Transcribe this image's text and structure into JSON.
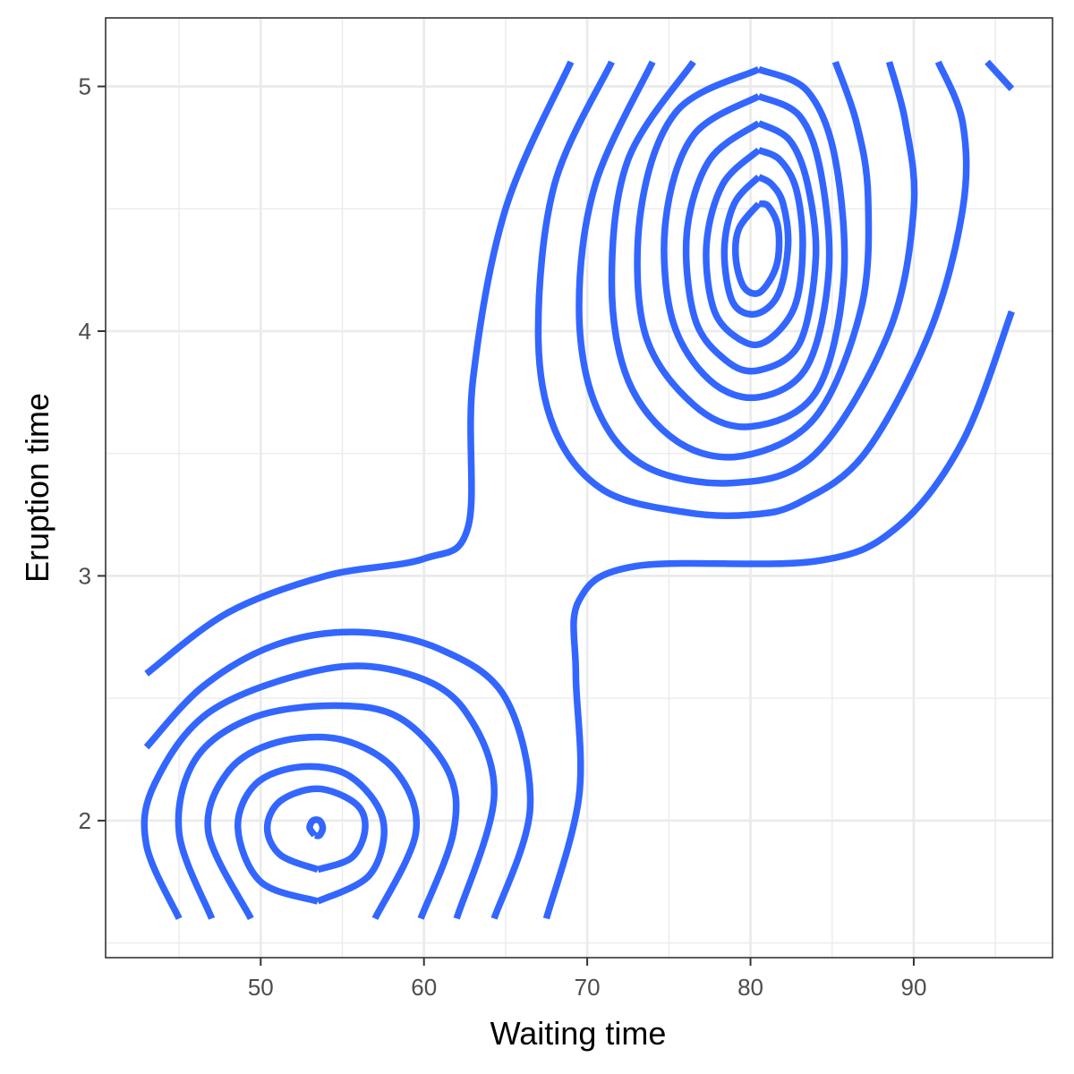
{
  "chart_data": {
    "type": "contour",
    "title": "",
    "xlabel": "Waiting time",
    "ylabel": "Eruption time",
    "xlim": [
      40.5,
      98.5
    ],
    "ylim": [
      1.44,
      5.28
    ],
    "x_ticks": [
      50,
      60,
      70,
      80,
      90
    ],
    "y_ticks": [
      2,
      3,
      4,
      5
    ],
    "x_tick_labels": [
      "50",
      "60",
      "70",
      "80",
      "90"
    ],
    "y_tick_labels": [
      "2",
      "3",
      "4",
      "5"
    ],
    "grid": true,
    "line_color": "#3366ff",
    "density_peaks": [
      {
        "x": 80.5,
        "y": 4.38
      },
      {
        "x": 53.5,
        "y": 1.98
      }
    ],
    "contours": [
      {
        "name": "contour-outer-upper",
        "points": [
          [
            69,
            5.1
          ],
          [
            65,
            4.5
          ],
          [
            63,
            3.8
          ],
          [
            62.7,
            3.2
          ],
          [
            60,
            3.07
          ],
          [
            54,
            3.0
          ],
          [
            48,
            2.85
          ],
          [
            43,
            2.6
          ]
        ]
      },
      {
        "name": "contour-outer-lower",
        "points": [
          [
            67.5,
            1.6
          ],
          [
            69.5,
            2.1
          ],
          [
            69.3,
            2.6
          ],
          [
            69.5,
            2.9
          ],
          [
            73,
            3.04
          ],
          [
            84,
            3.06
          ],
          [
            89,
            3.2
          ],
          [
            93,
            3.55
          ],
          [
            96,
            4.08
          ]
        ]
      },
      {
        "name": "contour-upper-arc-1",
        "points": [
          [
            71.5,
            5.1
          ],
          [
            68,
            4.6
          ],
          [
            67,
            4.0
          ],
          [
            68,
            3.6
          ],
          [
            71,
            3.35
          ],
          [
            76,
            3.26
          ],
          [
            80,
            3.25
          ],
          [
            83,
            3.3
          ],
          [
            87,
            3.5
          ],
          [
            91,
            4.0
          ],
          [
            93,
            4.5
          ],
          [
            93,
            4.85
          ],
          [
            91.5,
            5.1
          ]
        ]
      },
      {
        "name": "contour-upper-arc-2",
        "points": [
          [
            74,
            5.1
          ],
          [
            70.5,
            4.6
          ],
          [
            69.5,
            4.1
          ],
          [
            70.5,
            3.7
          ],
          [
            73.5,
            3.45
          ],
          [
            79,
            3.38
          ],
          [
            84,
            3.5
          ],
          [
            88.5,
            4.0
          ],
          [
            90,
            4.5
          ],
          [
            89.5,
            4.85
          ],
          [
            88.5,
            5.1
          ]
        ]
      },
      {
        "name": "contour-upper-arc-3",
        "points": [
          [
            76.5,
            5.1
          ],
          [
            72.5,
            4.7
          ],
          [
            71.5,
            4.2
          ],
          [
            72.5,
            3.8
          ],
          [
            75.5,
            3.55
          ],
          [
            79.5,
            3.49
          ],
          [
            84,
            3.65
          ],
          [
            86.8,
            4.1
          ],
          [
            87.2,
            4.55
          ],
          [
            86.5,
            4.85
          ],
          [
            85.2,
            5.1
          ]
        ]
      },
      {
        "name": "contour-upper-ring-1",
        "points": [
          [
            80.5,
            5.07
          ],
          [
            75.5,
            4.9
          ],
          [
            73.3,
            4.5
          ],
          [
            73.5,
            4.0
          ],
          [
            76.5,
            3.7
          ],
          [
            80,
            3.61
          ],
          [
            84,
            3.75
          ],
          [
            85.7,
            4.2
          ],
          [
            85.2,
            4.7
          ],
          [
            83.5,
            4.98
          ],
          [
            80.5,
            5.07
          ]
        ]
      },
      {
        "name": "contour-upper-ring-2",
        "points": [
          [
            80.5,
            4.96
          ],
          [
            76.5,
            4.8
          ],
          [
            74.8,
            4.45
          ],
          [
            75.2,
            4.05
          ],
          [
            77.5,
            3.8
          ],
          [
            80.5,
            3.73
          ],
          [
            83.5,
            3.86
          ],
          [
            84.8,
            4.25
          ],
          [
            84.3,
            4.65
          ],
          [
            83,
            4.88
          ],
          [
            80.5,
            4.96
          ]
        ]
      },
      {
        "name": "contour-upper-ring-3",
        "points": [
          [
            80.5,
            4.85
          ],
          [
            77.5,
            4.7
          ],
          [
            76.1,
            4.4
          ],
          [
            76.6,
            4.05
          ],
          [
            78.5,
            3.88
          ],
          [
            80.5,
            3.84
          ],
          [
            83,
            3.95
          ],
          [
            84,
            4.3
          ],
          [
            83.5,
            4.6
          ],
          [
            82.4,
            4.78
          ],
          [
            80.5,
            4.85
          ]
        ]
      },
      {
        "name": "contour-upper-ring-4",
        "points": [
          [
            80.5,
            4.74
          ],
          [
            78.3,
            4.6
          ],
          [
            77.3,
            4.35
          ],
          [
            77.8,
            4.08
          ],
          [
            79.5,
            3.96
          ],
          [
            81,
            3.96
          ],
          [
            82.7,
            4.1
          ],
          [
            83.2,
            4.35
          ],
          [
            82.8,
            4.58
          ],
          [
            81.8,
            4.7
          ],
          [
            80.5,
            4.74
          ]
        ]
      },
      {
        "name": "contour-upper-ring-5",
        "points": [
          [
            80.5,
            4.63
          ],
          [
            79,
            4.52
          ],
          [
            78.4,
            4.33
          ],
          [
            78.9,
            4.12
          ],
          [
            80.3,
            4.07
          ],
          [
            81.7,
            4.15
          ],
          [
            82.3,
            4.35
          ],
          [
            82,
            4.52
          ],
          [
            81.3,
            4.6
          ],
          [
            80.5,
            4.63
          ]
        ]
      },
      {
        "name": "contour-upper-ring-6",
        "points": [
          [
            80.5,
            4.52
          ],
          [
            79.3,
            4.42
          ],
          [
            79.1,
            4.3
          ],
          [
            79.6,
            4.18
          ],
          [
            80.6,
            4.16
          ],
          [
            81.6,
            4.27
          ],
          [
            81.7,
            4.42
          ],
          [
            81.1,
            4.51
          ],
          [
            80.5,
            4.52
          ]
        ]
      },
      {
        "name": "contour-upper-right-1",
        "points": [
          [
            94.5,
            5.1
          ],
          [
            96,
            4.99
          ]
        ]
      },
      {
        "name": "contour-lower-arc-1",
        "points": [
          [
            64.3,
            1.6
          ],
          [
            66.5,
            2.05
          ],
          [
            65,
            2.5
          ],
          [
            61,
            2.7
          ],
          [
            56,
            2.77
          ],
          [
            51,
            2.72
          ],
          [
            46.5,
            2.55
          ],
          [
            43,
            2.3
          ]
        ]
      },
      {
        "name": "contour-lower-arc-2",
        "points": [
          [
            45,
            1.6
          ],
          [
            43,
            1.9
          ],
          [
            43.5,
            2.15
          ],
          [
            47,
            2.45
          ],
          [
            54,
            2.62
          ],
          [
            59,
            2.6
          ],
          [
            62.5,
            2.45
          ],
          [
            64.3,
            2.1
          ],
          [
            62,
            1.6
          ]
        ]
      },
      {
        "name": "contour-lower-arc-3",
        "points": [
          [
            47,
            1.6
          ],
          [
            45,
            1.95
          ],
          [
            46,
            2.25
          ],
          [
            49.5,
            2.42
          ],
          [
            54.5,
            2.47
          ],
          [
            58.5,
            2.42
          ],
          [
            61.5,
            2.2
          ],
          [
            61.8,
            1.95
          ],
          [
            59.8,
            1.6
          ]
        ]
      },
      {
        "name": "contour-lower-arc-4",
        "points": [
          [
            49.4,
            1.6
          ],
          [
            46.8,
            1.95
          ],
          [
            48,
            2.2
          ],
          [
            51,
            2.32
          ],
          [
            55,
            2.33
          ],
          [
            58.3,
            2.2
          ],
          [
            59.5,
            1.95
          ],
          [
            57,
            1.6
          ]
        ]
      },
      {
        "name": "contour-lower-ring-1",
        "points": [
          [
            53.5,
            1.67
          ],
          [
            50,
            1.75
          ],
          [
            48.6,
            1.97
          ],
          [
            49.7,
            2.15
          ],
          [
            52.5,
            2.22
          ],
          [
            55.5,
            2.18
          ],
          [
            57.5,
            2.0
          ],
          [
            56.7,
            1.78
          ],
          [
            53.5,
            1.67
          ]
        ]
      },
      {
        "name": "contour-lower-ring-2",
        "points": [
          [
            53.5,
            1.8
          ],
          [
            51.2,
            1.86
          ],
          [
            50.4,
            1.97
          ],
          [
            51.2,
            2.08
          ],
          [
            53.5,
            2.13
          ],
          [
            55.8,
            2.07
          ],
          [
            56.4,
            1.97
          ],
          [
            55.6,
            1.85
          ],
          [
            53.5,
            1.8
          ]
        ]
      },
      {
        "name": "contour-lower-ring-3",
        "points": [
          [
            53.3,
            1.94
          ],
          [
            53.0,
            1.97
          ],
          [
            53.2,
            2.0
          ],
          [
            53.6,
            2.0
          ],
          [
            53.8,
            1.97
          ],
          [
            53.6,
            1.94
          ],
          [
            53.3,
            1.94
          ]
        ]
      }
    ]
  }
}
